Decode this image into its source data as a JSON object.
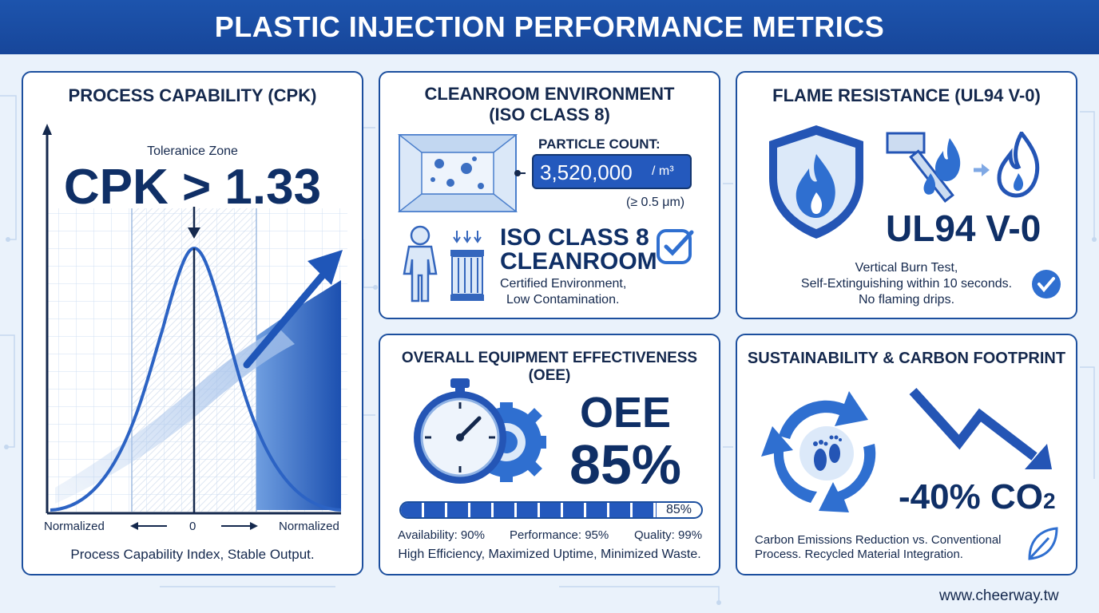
{
  "header": {
    "title": "PLASTIC INJECTION PERFORMANCE METRICS"
  },
  "cpk": {
    "title": "PROCESS CAPABILITY (CPK)",
    "zone_label": "Toleranice Zone",
    "value": "CPK > 1.33",
    "axis_left": "Normalized",
    "axis_center": "0",
    "axis_right": "Normalized",
    "caption": "Process Capability Index, Stable Output."
  },
  "cleanroom": {
    "title_line1": "CLEANROOM ENVIRONMENT",
    "title_line2": "(ISO CLASS 8)",
    "particle_label": "PARTICLE COUNT:",
    "particle_value": "3,520,000",
    "particle_unit": "/ m³",
    "particle_size": "(≥ 0.5 μm)",
    "class_line1": "ISO CLASS 8",
    "class_line2": "CLEANROOM",
    "desc_line1": "Certified Environment,",
    "desc_line2": "Low Contamination."
  },
  "flame": {
    "title": "FLAME RESISTANCE (UL94 V-0)",
    "rating": "UL94 V-0",
    "desc_line1": "Vertical Burn Test,",
    "desc_line2": "Self-Extinguishing within 10 seconds.",
    "desc_line3": "No flaming drips."
  },
  "oee": {
    "title": "OVERALL EQUIPMENT EFFECTIVENESS (OEE)",
    "label": "OEE",
    "value": "85%",
    "progress": 0.85,
    "progress_label": "85%",
    "availability": "Availability: 90%",
    "performance": "Performance: 95%",
    "quality": "Quality: 99%",
    "caption": "High Efficiency, Maximized Uptime, Minimized Waste."
  },
  "sustain": {
    "title": "SUSTAINABILITY & CARBON FOOTPRINT",
    "value_main": "-40% CO",
    "value_sub": "2",
    "desc_line1": "Carbon Emissions Reduction vs. Conventional",
    "desc_line2": "Process. Recycled Material Integration."
  },
  "footer": {
    "url": "www.cheerway.tw"
  },
  "colors": {
    "primary": "#1c4f9e",
    "accent": "#2f6fd0",
    "dark": "#14284d"
  }
}
